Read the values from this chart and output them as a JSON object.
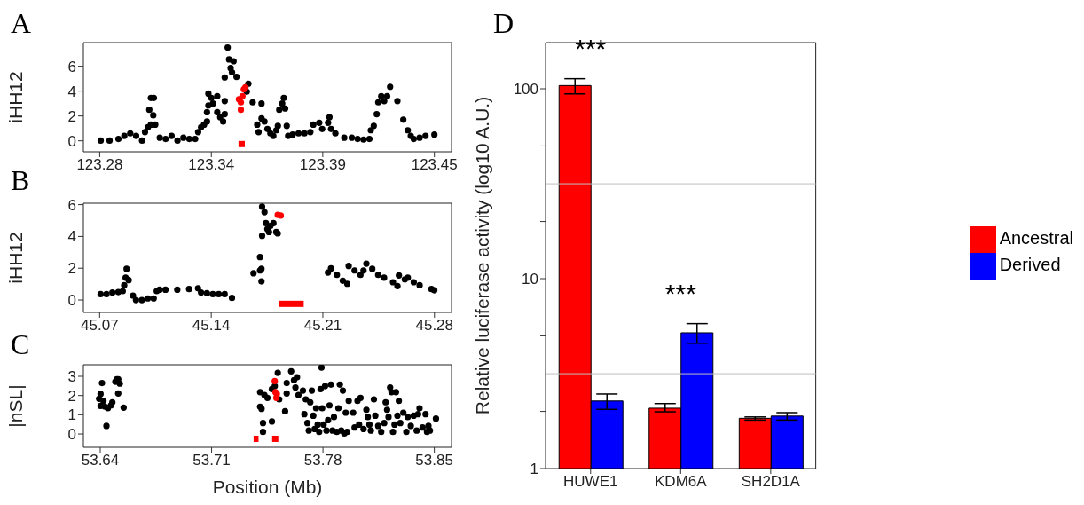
{
  "chart_data": [
    {
      "type": "scatter",
      "title": "A",
      "ylabel": "iHH12",
      "xlim": [
        123.2717,
        123.4587
      ],
      "xticks": [
        123.28,
        {
          "value": 123.3367,
          "label": "123.34"
        },
        {
          "value": 123.3933,
          "label": "123.39"
        },
        123.45
      ],
      "ylim": [
        -0.88,
        7.9
      ],
      "yticks": [
        0,
        2,
        4,
        6
      ],
      "series": [
        {
          "color": "#000000",
          "marker": "circle",
          "x": [
            123.2805,
            123.285,
            123.2895,
            123.2925,
            123.2955,
            123.2985,
            123.3015,
            123.303,
            123.3045,
            123.3052,
            123.306,
            123.3075,
            123.3072,
            123.306,
            123.3082,
            123.3105,
            123.3135,
            123.3165,
            123.3195,
            123.3225,
            123.3255,
            123.3285,
            123.33,
            123.3315,
            123.333,
            123.3345,
            123.3345,
            123.3352,
            123.3352,
            123.3367,
            123.3375,
            123.3397,
            123.3397,
            123.3412,
            123.3427,
            123.3435,
            123.3435,
            123.345,
            123.3457,
            123.348,
            123.3435,
            123.3465,
            123.3472,
            123.3495,
            123.3555,
            123.3547,
            123.3577,
            123.36,
            123.3607,
            123.3622,
            123.3622,
            123.3637,
            123.3652,
            123.3667,
            123.3682,
            123.3697,
            123.3705,
            123.3712,
            123.3727,
            123.3735,
            123.3742,
            123.375,
            123.3757,
            123.378,
            123.381,
            123.384,
            123.387,
            123.3885,
            123.3915,
            123.393,
            123.396,
            123.3967,
            123.3975,
            123.3997,
            123.4042,
            123.408,
            123.411,
            123.414,
            123.417,
            123.4177,
            123.4192,
            123.4207,
            123.4215,
            123.423,
            123.4245,
            123.426,
            123.4275,
            123.4312,
            123.4342,
            123.4365,
            123.438,
            123.4395,
            123.4425,
            123.4455,
            123.45
          ],
          "values": [
            0.02,
            0.02,
            0.15,
            0.4,
            0.6,
            0.4,
            0.02,
            0.7,
            1.1,
            2.5,
            3.45,
            3.45,
            2.05,
            1.3,
            1.3,
            0.25,
            0.15,
            0.4,
            0.02,
            0.25,
            0.15,
            0.15,
            0.7,
            1.1,
            1.3,
            1.55,
            2.3,
            2.85,
            3.8,
            3.45,
            3.0,
            3.6,
            2.3,
            1.9,
            1.55,
            3.2,
            2.15,
            7.5,
            6.55,
            6.4,
            5.1,
            5.85,
            5.5,
            5.15,
            4.6,
            3.95,
            3.1,
            1.3,
            0.7,
            3.0,
            1.8,
            1.55,
            0.95,
            0.6,
            0.4,
            0.85,
            1.2,
            2.5,
            3.0,
            3.45,
            2.6,
            1.2,
            0.4,
            0.5,
            0.6,
            0.6,
            0.7,
            1.3,
            1.45,
            0.95,
            1.45,
            1.9,
            0.95,
            0.6,
            0.25,
            0.25,
            0.15,
            0.1,
            0.15,
            0.85,
            1.2,
            2.15,
            3.1,
            3.6,
            3.2,
            3.6,
            4.35,
            3.2,
            1.7,
            0.85,
            0.4,
            0.15,
            0.25,
            0.4,
            0.5
          ]
        },
        {
          "color": "#ff0000",
          "marker": "circle",
          "x": [
            123.3507,
            123.3517,
            123.3525,
            123.3532,
            123.354,
            123.3517
          ],
          "values": [
            3.35,
            3.1,
            3.6,
            4.15,
            4.3,
            2.5
          ]
        },
        {
          "type": "line",
          "marker": "none",
          "color": "#ff0000",
          "x": [
            123.3505,
            123.3537
          ],
          "values": [
            -0.26,
            -0.26
          ]
        }
      ]
    },
    {
      "type": "scatter",
      "title": "B",
      "ylabel": "iHH12",
      "xlim": [
        45.0598,
        45.2907
      ],
      "xticks": [
        45.07,
        45.14,
        45.21,
        45.28
      ],
      "ylim": [
        -0.78,
        6.09
      ],
      "yticks": [
        0,
        2,
        4,
        6
      ],
      "series": [
        {
          "color": "#000000",
          "marker": "circle",
          "x": [
            45.0706,
            45.0743,
            45.078,
            45.0817,
            45.0845,
            45.0854,
            45.0863,
            45.0869,
            45.0882,
            45.0909,
            45.0928,
            45.0965,
            45.1002,
            45.1039,
            45.1058,
            45.1076,
            45.1113,
            45.1187,
            45.1261,
            45.1317,
            45.1336,
            45.1373,
            45.141,
            45.1447,
            45.1484,
            45.153,
            45.1665,
            45.1706,
            45.1715,
            45.1715,
            45.1706,
            45.1719,
            45.1719,
            45.1734,
            45.1743,
            45.1752,
            45.1762,
            45.1771,
            45.179,
            45.1808,
            45.1817,
            45.2132,
            45.2151,
            45.2188,
            45.2225,
            45.2253,
            45.2262,
            45.2299,
            45.2336,
            45.2355,
            45.2373,
            45.241,
            45.2447,
            45.2484,
            45.254,
            45.2568,
            45.2577,
            45.2614,
            45.2633,
            45.267,
            45.2707,
            45.2781,
            45.2799
          ],
          "values": [
            0.37,
            0.37,
            0.47,
            0.5,
            0.56,
            0.93,
            1.4,
            1.96,
            1.25,
            0.28,
            0,
            0,
            0.1,
            0.1,
            0.56,
            0.65,
            0.65,
            0.65,
            0.69,
            0.74,
            0.47,
            0.43,
            0.37,
            0.37,
            0.37,
            0.13,
            1.68,
            2.7,
            1.96,
            1.17,
            1.86,
            4.04,
            5.87,
            5.53,
            4.84,
            4.47,
            4.28,
            4.66,
            4.84,
            4.28,
            4.19,
            1.73,
            1.99,
            1.58,
            1.21,
            1.02,
            2.14,
            1.86,
            1.58,
            1.86,
            2.29,
            1.96,
            1.58,
            1.4,
            1.12,
            0.88,
            1.55,
            1.3,
            1.4,
            1.12,
            0.93,
            0.69,
            0.61
          ]
        },
        {
          "color": "#ff0000",
          "marker": "circle",
          "x": [
            45.1817,
            45.1836
          ],
          "values": [
            5.36,
            5.31
          ]
        },
        {
          "type": "line",
          "marker": "none",
          "color": "#ff0000",
          "x": [
            45.1827,
            45.198
          ],
          "values": [
            -0.24,
            -0.24
          ]
        }
      ]
    },
    {
      "type": "scatter",
      "title": "C",
      "xlabel": "Position (Mb)",
      "ylabel": "|nSL|",
      "xlim": [
        53.6294,
        53.8608
      ],
      "xticks": [
        53.64,
        53.71,
        53.78,
        53.85
      ],
      "ylim": [
        -0.69,
        3.6
      ],
      "yticks": [
        0,
        1,
        2,
        3
      ],
      "series": [
        {
          "color": "#000000",
          "marker": "circle",
          "x": [
            53.6402,
            53.6393,
            53.6402,
            53.6411,
            53.642,
            53.643,
            53.6439,
            53.6448,
            53.6467,
            53.6476,
            53.6495,
            53.6504,
            53.6513,
            53.6523,
            53.6513,
            53.6547,
            53.7405,
            53.7405,
            53.7414,
            53.7423,
            53.7423,
            53.7432,
            53.7451,
            53.7479,
            53.7479,
            53.7497,
            53.7516,
            53.7525,
            53.7562,
            53.7572,
            53.7572,
            53.76,
            53.7618,
            53.7627,
            53.7637,
            53.7646,
            53.7674,
            53.7683,
            53.7692,
            53.7702,
            53.7711,
            53.772,
            53.773,
            53.7739,
            53.7748,
            53.7757,
            53.7767,
            53.7776,
            53.7785,
            53.7791,
            53.7795,
            53.7804,
            53.7813,
            53.7822,
            53.7832,
            53.7841,
            53.785,
            53.786,
            53.7869,
            53.7887,
            53.7897,
            53.7906,
            53.7915,
            53.7925,
            53.7934,
            53.7943,
            53.7952,
            53.7962,
            53.799,
            53.7999,
            53.8017,
            53.8027,
            53.8036,
            53.8055,
            53.8073,
            53.8082,
            53.8092,
            53.8101,
            53.812,
            53.8129,
            53.8147,
            53.8166,
            53.8185,
            53.8194,
            53.8203,
            53.8212,
            53.8222,
            53.8231,
            53.824,
            53.825,
            53.8259,
            53.8268,
            53.8277,
            53.8286,
            53.8305,
            53.8324,
            53.8333,
            53.8352,
            53.837,
            53.8389,
            53.8398,
            53.8407,
            53.8426,
            53.8445,
            53.8454,
            53.8463,
            53.8472,
            53.851
          ],
          "values": [
            2.08,
            1.83,
            1.46,
            2.65,
            1.72,
            1.42,
            0.42,
            1.34,
            1.49,
            1.65,
            2.72,
            2.85,
            2.85,
            2.62,
            2.11,
            1.37,
            2.18,
            1.42,
            1.31,
            0.57,
            0.11,
            2.03,
            1.88,
            0.65,
            2.34,
            2.49,
            3.18,
            1.8,
            1.18,
            2.65,
            2.11,
            3.26,
            2.8,
            2.42,
            2.95,
            2.03,
            2.26,
            1.03,
            1.8,
            0.57,
            0.18,
            1.65,
            2.26,
            0.95,
            0.26,
            1.34,
            0.49,
            0.11,
            2.34,
            3.46,
            1.34,
            0.49,
            2.49,
            0.18,
            0.72,
            1.49,
            2.57,
            0.18,
            0.88,
            0.11,
            1.34,
            2.57,
            0.18,
            2.26,
            0.03,
            1.11,
            0.11,
            1.72,
            1.11,
            0.34,
            1.72,
            0.49,
            1.88,
            0.26,
            1.26,
            0.88,
            0.49,
            0.18,
            1.8,
            0.95,
            0.42,
            0.11,
            0.57,
            1.65,
            1.26,
            0.88,
            2.42,
            2.18,
            0.11,
            0.49,
            2.18,
            0.95,
            1.72,
            0.57,
            1.11,
            0.11,
            0.88,
            0.42,
            0.95,
            0.18,
            1.03,
            1.34,
            0.34,
            1.03,
            0.11,
            0.42,
            0.18,
            0.8
          ]
        },
        {
          "color": "#ff0000",
          "marker": "circle",
          "x": [
            53.7497,
            53.7501,
            53.7507,
            53.751
          ],
          "values": [
            2.75,
            2.18,
            1.88,
            2.08
          ]
        },
        {
          "type": "line",
          "marker": "none",
          "color": "#ff0000",
          "x": [
            53.7364,
            53.7395
          ],
          "values": [
            -0.25,
            -0.25
          ]
        },
        {
          "marker": "square",
          "color": "#ff0000",
          "x": [
            53.75
          ],
          "values": [
            -0.25
          ]
        }
      ]
    },
    {
      "type": "bar",
      "title": "D",
      "ylabel": "Relative luciferase activity (log10 A.U.)",
      "log": true,
      "legend": "right",
      "categories": [
        "HUWE1",
        "KDM6A",
        "SH2D1A"
      ],
      "ylim": [
        1,
        175
      ],
      "yticks": [
        1,
        {
          "value": 2,
          "label": null
        },
        {
          "value": 5,
          "label": null
        },
        10,
        {
          "value": 20,
          "label": null
        },
        {
          "value": 50,
          "label": null
        },
        100
      ],
      "series": [
        {
          "name": "Ancestral",
          "color": "#ff0000",
          "values": [
            104,
            2.08,
            1.84
          ],
          "errors": [
            [
              94,
              113
            ],
            [
              1.99,
              2.2
            ],
            [
              1.8,
              1.87
            ]
          ]
        },
        {
          "name": "Derived",
          "color": "#0000ff",
          "values": [
            2.27,
            5.19,
            1.89
          ],
          "errors": [
            [
              2.05,
              2.47
            ],
            [
              4.57,
              5.8
            ],
            [
              1.8,
              1.97
            ]
          ]
        }
      ],
      "ref_lines": [
        {
          "axis": "y",
          "value": 31.6,
          "color": "#bebebe"
        },
        {
          "axis": "y",
          "value": 3.16,
          "color": "#bebebe"
        }
      ],
      "annotations": [
        "***",
        "***"
      ]
    }
  ]
}
